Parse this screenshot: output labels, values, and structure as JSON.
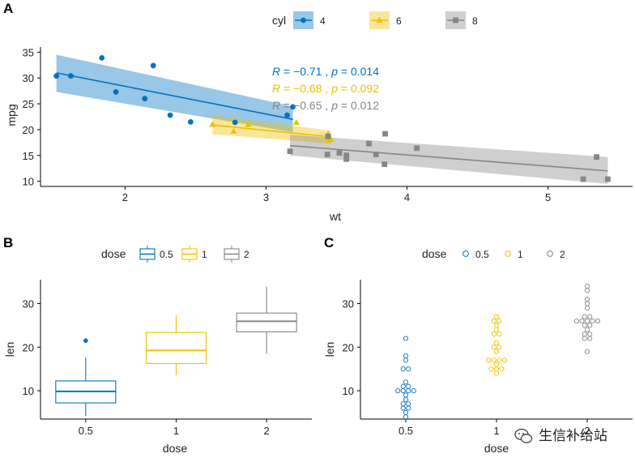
{
  "colors": {
    "cyl4": "#0073C2",
    "cyl6": "#EFC000",
    "cyl8": "#868686"
  },
  "watermark": {
    "text": "生信补给站",
    "icon": "wechat-icon"
  },
  "chart_data": [
    {
      "panel": "A",
      "type": "scatter",
      "xlabel": "wt",
      "ylabel": "mpg",
      "xlim": [
        1.4,
        5.6
      ],
      "ylim": [
        9,
        36
      ],
      "xticks": [
        2,
        3,
        4,
        5
      ],
      "yticks": [
        10,
        15,
        20,
        25,
        30,
        35
      ],
      "legend": {
        "title": "cyl",
        "position": "top"
      },
      "series": [
        {
          "name": "4",
          "marker": "circle",
          "points": [
            [
              2.32,
              22.8
            ],
            [
              3.19,
              24.4
            ],
            [
              3.15,
              22.8
            ],
            [
              2.2,
              32.4
            ],
            [
              1.615,
              30.4
            ],
            [
              1.835,
              33.9
            ],
            [
              2.465,
              21.5
            ],
            [
              1.935,
              27.3
            ],
            [
              2.14,
              26.0
            ],
            [
              1.513,
              30.4
            ],
            [
              2.78,
              21.4
            ]
          ],
          "fit": {
            "x": [
              1.513,
              3.19
            ],
            "y": [
              31.0,
              22.0
            ]
          },
          "band": {
            "x": [
              1.513,
              3.19
            ],
            "upper": [
              34.5,
              24.5
            ],
            "lower": [
              27.3,
              19.5
            ]
          },
          "annotation": {
            "R": "−0.71",
            "p": "0.014"
          }
        },
        {
          "name": "6",
          "marker": "triangle",
          "points": [
            [
              2.62,
              21.0
            ],
            [
              2.875,
              21.0
            ],
            [
              3.215,
              21.4
            ],
            [
              3.46,
              18.1
            ],
            [
              3.44,
              19.2
            ],
            [
              3.44,
              17.8
            ],
            [
              2.77,
              19.7
            ]
          ],
          "fit": {
            "x": [
              2.62,
              3.46
            ],
            "y": [
              20.9,
              18.6
            ]
          },
          "band": {
            "x": [
              2.62,
              3.46
            ],
            "upper": [
              22.8,
              19.8
            ],
            "lower": [
              19.1,
              17.3
            ]
          },
          "annotation": {
            "R": "−0.68",
            "p": "0.092"
          }
        },
        {
          "name": "8",
          "marker": "square",
          "points": [
            [
              3.44,
              18.7
            ],
            [
              3.57,
              14.3
            ],
            [
              4.07,
              16.4
            ],
            [
              3.73,
              17.3
            ],
            [
              3.78,
              15.2
            ],
            [
              5.25,
              10.4
            ],
            [
              5.424,
              10.4
            ],
            [
              5.345,
              14.7
            ],
            [
              3.52,
              15.5
            ],
            [
              3.435,
              15.2
            ],
            [
              3.84,
              13.3
            ],
            [
              3.845,
              19.2
            ],
            [
              3.17,
              15.8
            ],
            [
              3.57,
              15.0
            ]
          ],
          "fit": {
            "x": [
              3.17,
              5.424
            ],
            "y": [
              16.9,
              12.0
            ]
          },
          "band": {
            "x": [
              3.17,
              5.424
            ],
            "upper": [
              19.0,
              14.7
            ],
            "lower": [
              15.0,
              9.5
            ]
          },
          "annotation": {
            "R": "−0.65",
            "p": "0.012"
          }
        }
      ]
    },
    {
      "panel": "B",
      "type": "boxplot",
      "xlabel": "dose",
      "ylabel": "len",
      "ylim": [
        3.5,
        35.5
      ],
      "yticks": [
        10,
        20,
        30
      ],
      "categories": [
        "0.5",
        "1",
        "2"
      ],
      "legend": {
        "title": "dose",
        "position": "top"
      },
      "boxes": [
        {
          "name": "0.5",
          "min": 4.2,
          "q1": 7.2,
          "median": 9.85,
          "q3": 12.25,
          "max": 17.6,
          "outliers": [
            21.5
          ]
        },
        {
          "name": "1",
          "min": 13.6,
          "q1": 16.25,
          "median": 19.25,
          "q3": 23.38,
          "max": 27.3,
          "outliers": []
        },
        {
          "name": "2",
          "min": 18.5,
          "q1": 23.52,
          "median": 25.95,
          "q3": 27.83,
          "max": 33.9,
          "outliers": []
        }
      ]
    },
    {
      "panel": "C",
      "type": "dotplot",
      "xlabel": "dose",
      "ylabel": "len",
      "ylim": [
        3.5,
        35.5
      ],
      "yticks": [
        10,
        20,
        30
      ],
      "categories": [
        "0.5",
        "1",
        "2"
      ],
      "legend": {
        "title": "dose",
        "position": "top"
      },
      "groups": [
        {
          "name": "0.5",
          "values": [
            4.2,
            11.5,
            7.3,
            5.8,
            6.4,
            10,
            11.2,
            11.2,
            5.2,
            7,
            15.2,
            21.5,
            17.6,
            9.7,
            14.5,
            10,
            8.2,
            9.4,
            16.5,
            9.7
          ]
        },
        {
          "name": "1",
          "values": [
            16.5,
            16.5,
            15.2,
            17.3,
            22.5,
            17.3,
            13.6,
            14.5,
            18.8,
            15.5,
            19.7,
            23.3,
            23.6,
            26.4,
            20,
            25.2,
            25.8,
            21.2,
            14.5,
            27.3
          ]
        },
        {
          "name": "2",
          "values": [
            23.6,
            18.5,
            33.9,
            25.5,
            26.4,
            32.5,
            26.7,
            21.5,
            23.3,
            29.5,
            25.5,
            26.4,
            22.4,
            24.5,
            24.8,
            30.9,
            26.4,
            27.3,
            29.4,
            23
          ]
        }
      ]
    }
  ]
}
